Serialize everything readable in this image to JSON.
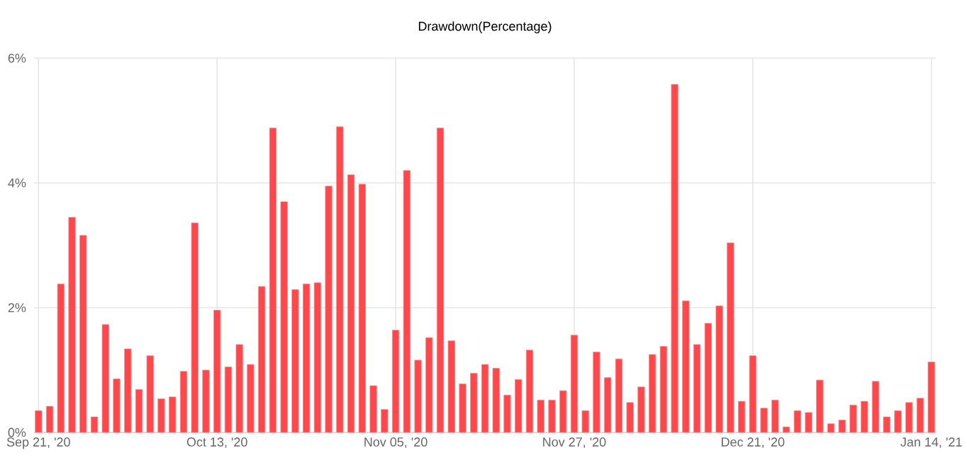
{
  "chart_data": {
    "type": "bar",
    "title": "Drawdown(Percentage)",
    "categories": [
      "Sep 21, '20",
      null,
      null,
      null,
      null,
      null,
      null,
      null,
      null,
      null,
      null,
      null,
      null,
      null,
      null,
      null,
      "Oct 13, '20",
      null,
      null,
      null,
      null,
      null,
      null,
      null,
      null,
      null,
      null,
      null,
      null,
      null,
      null,
      null,
      "Nov 05, '20",
      null,
      null,
      null,
      null,
      null,
      null,
      null,
      null,
      null,
      null,
      null,
      null,
      null,
      null,
      null,
      "Nov 27, '20",
      null,
      null,
      null,
      null,
      null,
      null,
      null,
      null,
      null,
      null,
      null,
      null,
      null,
      null,
      null,
      "Dec 21, '20",
      null,
      null,
      null,
      null,
      null,
      null,
      null,
      null,
      null,
      null,
      null,
      null,
      null,
      null,
      null,
      "Jan 14, '21"
    ],
    "values": [
      0.35,
      0.42,
      2.38,
      3.45,
      3.16,
      0.25,
      1.73,
      0.86,
      1.34,
      0.69,
      1.23,
      0.54,
      0.57,
      0.98,
      3.36,
      1.0,
      1.96,
      1.05,
      1.41,
      1.09,
      2.34,
      4.88,
      3.7,
      2.29,
      2.38,
      2.4,
      3.95,
      4.9,
      4.13,
      3.98,
      0.75,
      0.37,
      1.64,
      4.2,
      1.16,
      1.52,
      4.88,
      1.47,
      0.78,
      0.95,
      1.09,
      1.03,
      0.6,
      0.85,
      1.32,
      0.52,
      0.52,
      0.67,
      1.56,
      0.35,
      1.29,
      0.88,
      1.18,
      0.48,
      0.73,
      1.25,
      1.38,
      5.58,
      2.11,
      1.41,
      1.75,
      2.03,
      3.04,
      0.5,
      1.23,
      0.39,
      0.52,
      0.09,
      0.35,
      0.32,
      0.84,
      0.14,
      0.2,
      0.44,
      0.5,
      0.82,
      0.25,
      0.35,
      0.48,
      0.55,
      1.13
    ],
    "color": "#ff474c",
    "ylim": [
      0,
      6
    ],
    "yticks": [
      {
        "value": 0,
        "label": "0%"
      },
      {
        "value": 2,
        "label": "2%"
      },
      {
        "value": 4,
        "label": "4%"
      },
      {
        "value": 6,
        "label": "6%"
      }
    ],
    "grid": true
  }
}
